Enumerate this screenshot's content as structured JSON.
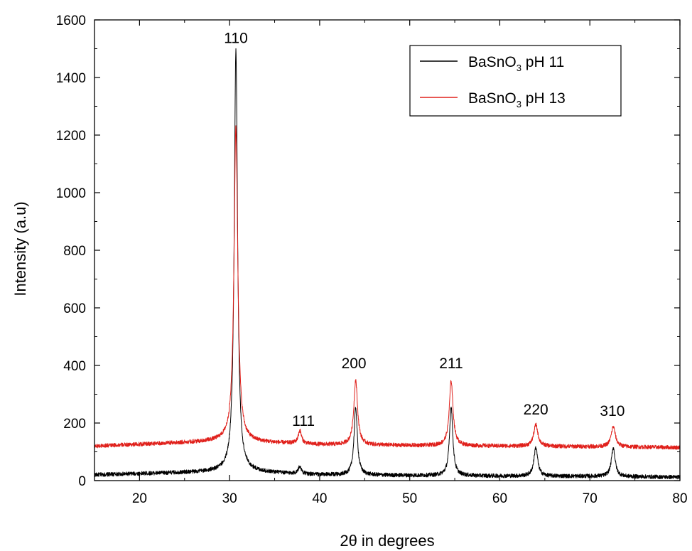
{
  "chart_data": {
    "type": "line",
    "xlabel": "2θ in degrees",
    "ylabel": "Intensity (a.u)",
    "xlim": [
      15,
      80
    ],
    "ylim": [
      0,
      1600
    ],
    "xticks": [
      20,
      30,
      40,
      50,
      60,
      70,
      80
    ],
    "yticks": [
      0,
      200,
      400,
      600,
      800,
      1000,
      1200,
      1400,
      1600
    ],
    "grid": false,
    "legend": "top-right",
    "series": [
      {
        "name": "BaSnO3 pH 11",
        "color": "#000000",
        "baseline": [
          [
            15,
            20
          ],
          [
            25,
            28
          ],
          [
            29.5,
            32
          ],
          [
            31.5,
            32
          ],
          [
            40,
            20
          ],
          [
            50,
            18
          ],
          [
            60,
            16
          ],
          [
            70,
            15
          ],
          [
            80,
            12
          ]
        ],
        "peaks": [
          [
            30.7,
            1465,
            0.22
          ],
          [
            37.8,
            25,
            0.2
          ],
          [
            44.0,
            235,
            0.22
          ],
          [
            54.6,
            240,
            0.22
          ],
          [
            64.0,
            100,
            0.25
          ],
          [
            72.6,
            100,
            0.25
          ]
        ]
      },
      {
        "name": "BaSnO3 pH 13",
        "color": "#e0201b",
        "baseline": [
          [
            15,
            120
          ],
          [
            25,
            132
          ],
          [
            29.5,
            138
          ],
          [
            31.5,
            135
          ],
          [
            40,
            125
          ],
          [
            50,
            122
          ],
          [
            60,
            120
          ],
          [
            70,
            118
          ],
          [
            80,
            115
          ]
        ],
        "peaks": [
          [
            30.7,
            1090,
            0.25
          ],
          [
            37.8,
            45,
            0.22
          ],
          [
            44.0,
            225,
            0.25
          ],
          [
            54.6,
            225,
            0.25
          ],
          [
            64.0,
            75,
            0.28
          ],
          [
            72.6,
            70,
            0.28
          ]
        ]
      }
    ],
    "annotations": [
      {
        "text": "110",
        "x": 30.7,
        "y": 1520
      },
      {
        "text": "111",
        "x": 38.2,
        "y": 190
      },
      {
        "text": "200",
        "x": 43.8,
        "y": 390
      },
      {
        "text": "211",
        "x": 54.6,
        "y": 390
      },
      {
        "text": "220",
        "x": 64.0,
        "y": 230
      },
      {
        "text": "310",
        "x": 72.5,
        "y": 225
      }
    ]
  },
  "legend": {
    "items": [
      {
        "base": "BaSnO",
        "sub": "3",
        "rest": " pH 11",
        "color": "#000000"
      },
      {
        "base": "BaSnO",
        "sub": "3",
        "rest": " pH 13",
        "color": "#e0201b"
      }
    ]
  }
}
